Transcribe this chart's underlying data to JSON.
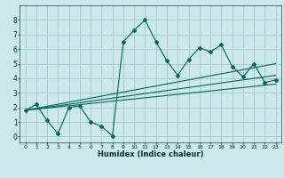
{
  "title": "",
  "xlabel": "Humidex (Indice chaleur)",
  "ylabel": "",
  "bg_color": "#cce8e8",
  "grid_color": "#aacccc",
  "line_color": "#006666",
  "marker_color": "#006666",
  "xlim": [
    -0.5,
    23.5
  ],
  "ylim": [
    -0.4,
    9.0
  ],
  "xticks": [
    0,
    1,
    2,
    3,
    4,
    5,
    6,
    7,
    8,
    9,
    10,
    11,
    12,
    13,
    14,
    15,
    16,
    17,
    18,
    19,
    20,
    21,
    22,
    23
  ],
  "yticks": [
    0,
    1,
    2,
    3,
    4,
    5,
    6,
    7,
    8
  ],
  "series1": [
    1.8,
    2.2,
    1.1,
    0.2,
    2.0,
    2.1,
    1.0,
    0.7,
    0.05,
    6.5,
    7.3,
    8.0,
    6.5,
    5.2,
    4.2,
    5.3,
    6.1,
    5.8,
    6.3,
    4.8,
    4.1,
    5.0,
    3.7,
    3.9
  ],
  "series2_x": [
    0,
    23
  ],
  "series2_y": [
    1.8,
    5.0
  ],
  "series3_x": [
    0,
    23
  ],
  "series3_y": [
    1.8,
    4.2
  ],
  "series4_x": [
    0,
    23
  ],
  "series4_y": [
    1.8,
    3.6
  ]
}
